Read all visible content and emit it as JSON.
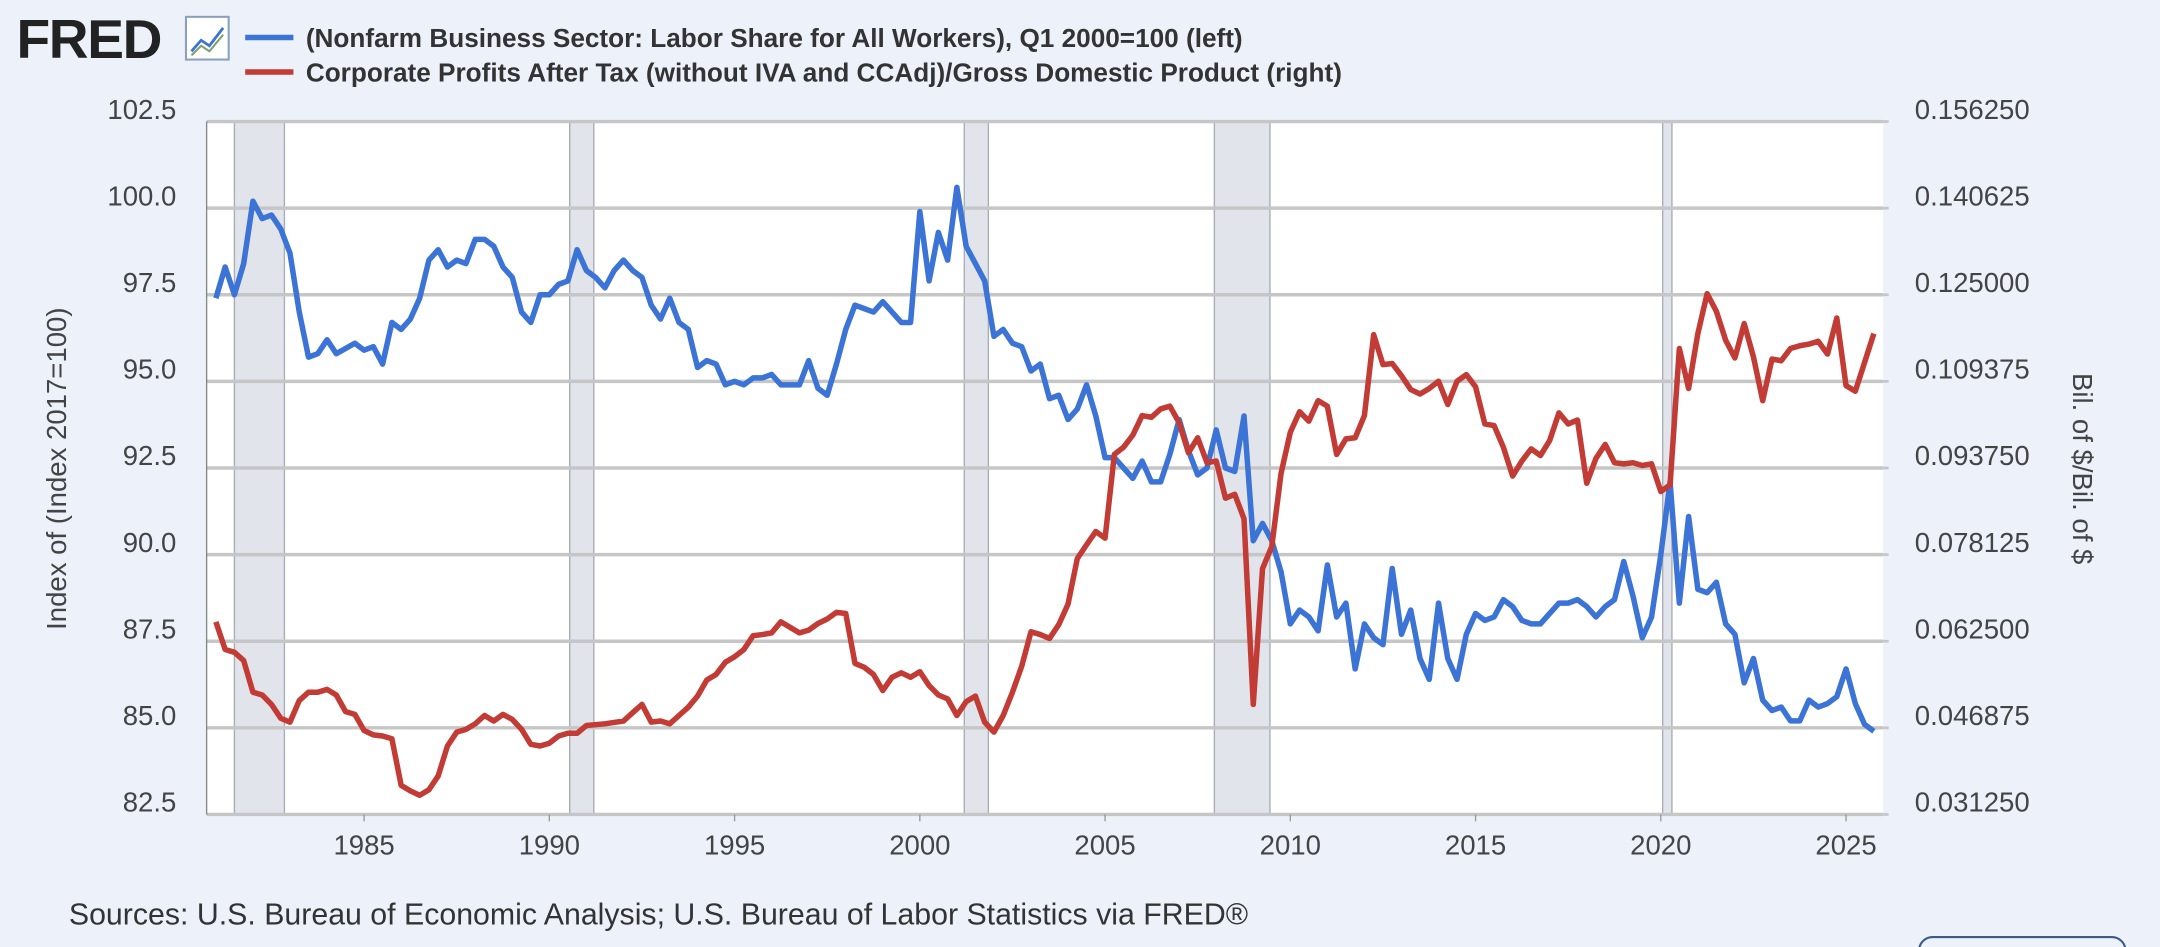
{
  "logo": "FRED",
  "chart_data": {
    "type": "line",
    "ylabel": "Index of (Index 2017=100)",
    "y2label": "Bil. of $/Bil. of $",
    "source": "Sources: U.S. Bureau of Economic Analysis; U.S. Bureau of Labor Statistics via FRED®",
    "grid": true,
    "xlim": [
      1980.75,
      2026.0
    ],
    "xticks": [
      1985,
      1990,
      1995,
      2000,
      2005,
      2010,
      2015,
      2020,
      2025
    ],
    "ylim": [
      82.5,
      102.5
    ],
    "yticks": [
      82.5,
      {
        "value": 85,
        "label": "85.0"
      },
      87.5,
      {
        "value": 90,
        "label": "90.0"
      },
      92.5,
      {
        "value": 95,
        "label": "95.0"
      },
      97.5,
      {
        "value": 100,
        "label": "100.0"
      },
      102.5
    ],
    "y2lim": [
      0.03125,
      0.15625
    ],
    "y2ticks": [
      {
        "value": 0.03125,
        "label": "0.031250"
      },
      0.046875,
      {
        "value": 0.0625,
        "label": "0.062500"
      },
      0.078125,
      {
        "value": 0.09375,
        "label": "0.093750"
      },
      0.109375,
      {
        "value": 0.125,
        "label": "0.125000"
      },
      0.140625,
      {
        "value": 0.15625,
        "label": "0.156250"
      }
    ],
    "recessions": [
      [
        1981.5,
        1982.85
      ],
      [
        1990.55,
        1991.2
      ],
      [
        2001.2,
        2001.85
      ],
      [
        2007.95,
        2009.45
      ],
      [
        2020.05,
        2020.3
      ]
    ],
    "series": [
      {
        "name": "(Nonfarm Business Sector: Labor Share for All Workers), Q1 2000=100 (left)",
        "color": "#3b73d6",
        "x": [
          1981.0,
          1981.25,
          1981.5,
          1981.75,
          1982.0,
          1982.25,
          1982.5,
          1982.75,
          1983.0,
          1983.25,
          1983.5,
          1983.75,
          1984.0,
          1984.25,
          1984.75,
          1985.0,
          1985.25,
          1985.5,
          1985.75,
          1986.0,
          1986.25,
          1986.5,
          1986.75,
          1987.0,
          1987.25,
          1987.5,
          1987.75,
          1988.0,
          1988.25,
          1988.5,
          1988.75,
          1989.0,
          1989.25,
          1989.5,
          1989.75,
          1990.0,
          1990.25,
          1990.5,
          1990.75,
          1991.0,
          1991.25,
          1991.5,
          1991.75,
          1992.0,
          1992.25,
          1992.5,
          1992.75,
          1993.0,
          1993.25,
          1993.5,
          1993.75,
          1994.0,
          1994.25,
          1994.5,
          1994.75,
          1995.0,
          1995.25,
          1995.5,
          1995.75,
          1996.0,
          1996.25,
          1996.5,
          1996.75,
          1997.0,
          1997.25,
          1997.5,
          1997.75,
          1998.0,
          1998.25,
          1998.5,
          1998.75,
          1999.0,
          1999.25,
          1999.5,
          1999.75,
          2000.0,
          2000.25,
          2000.5,
          2000.75,
          2001.0,
          2001.25,
          2001.5,
          2001.75,
          2002.0,
          2002.25,
          2002.5,
          2002.75,
          2003.0,
          2003.25,
          2003.5,
          2003.75,
          2004.0,
          2004.25,
          2004.5,
          2004.75,
          2005.0,
          2005.25,
          2005.5,
          2005.75,
          2006.0,
          2006.25,
          2006.5,
          2006.75,
          2007.0,
          2007.25,
          2007.5,
          2007.75,
          2008.0,
          2008.25,
          2008.5,
          2008.75,
          2009.0,
          2009.25,
          2009.5,
          2009.75,
          2010.0,
          2010.25,
          2010.5,
          2010.75,
          2011.0,
          2011.25,
          2011.5,
          2011.75,
          2012.0,
          2012.25,
          2012.5,
          2012.75,
          2013.0,
          2013.25,
          2013.5,
          2013.75,
          2014.0,
          2014.25,
          2014.5,
          2014.75,
          2015.0,
          2015.25,
          2015.5,
          2015.75,
          2016.0,
          2016.25,
          2016.5,
          2016.75,
          2017.0,
          2017.25,
          2017.5,
          2017.75,
          2018.0,
          2018.25,
          2018.5,
          2018.75,
          2019.0,
          2019.25,
          2019.5,
          2019.75,
          2020.0,
          2020.25,
          2020.5,
          2020.75,
          2021.0,
          2021.25,
          2021.5,
          2021.75,
          2022.0,
          2022.25,
          2022.5,
          2022.75,
          2023.0,
          2023.25,
          2023.5,
          2023.75,
          2024.0,
          2024.25,
          2024.5,
          2024.75,
          2025.0,
          2025.25,
          2025.5,
          2025.75
        ],
        "values": [
          97.4,
          98.3,
          97.5,
          98.4,
          100.2,
          99.7,
          99.8,
          99.4,
          98.7,
          97.0,
          95.7,
          95.8,
          96.2,
          95.8,
          96.1,
          95.9,
          96.0,
          95.5,
          96.7,
          96.5,
          96.8,
          97.4,
          98.5,
          98.8,
          98.3,
          98.5,
          98.4,
          99.1,
          99.1,
          98.9,
          98.3,
          98.0,
          97.0,
          96.7,
          97.5,
          97.5,
          97.8,
          97.9,
          98.8,
          98.2,
          98.0,
          97.7,
          98.2,
          98.5,
          98.2,
          98.0,
          97.2,
          96.8,
          97.4,
          96.7,
          96.5,
          95.4,
          95.6,
          95.5,
          94.9,
          95.0,
          94.9,
          95.1,
          95.1,
          95.2,
          94.9,
          94.9,
          94.9,
          95.6,
          94.8,
          94.6,
          95.5,
          96.5,
          97.2,
          97.1,
          97.0,
          97.3,
          97.0,
          96.7,
          96.7,
          99.9,
          97.9,
          99.3,
          98.5,
          100.6,
          98.9,
          98.4,
          97.9,
          96.3,
          96.5,
          96.1,
          96.0,
          95.3,
          95.5,
          94.5,
          94.6,
          93.9,
          94.2,
          94.9,
          94.0,
          92.8,
          92.8,
          92.5,
          92.2,
          92.7,
          92.1,
          92.1,
          92.9,
          93.9,
          93.0,
          92.3,
          92.5,
          93.6,
          92.5,
          92.4,
          94.0,
          90.4,
          90.9,
          90.4,
          89.5,
          88.0,
          88.4,
          88.2,
          87.8,
          89.7,
          88.2,
          88.6,
          86.7,
          88.0,
          87.6,
          87.4,
          89.6,
          87.7,
          88.4,
          87.0,
          86.4,
          88.6,
          87.0,
          86.4,
          87.7,
          88.3,
          88.1,
          88.2,
          88.7,
          88.5,
          88.1,
          88.0,
          88.0,
          88.3,
          88.6,
          88.6,
          88.7,
          88.5,
          88.2,
          88.5,
          88.7,
          89.8,
          88.8,
          87.6,
          88.2,
          90.0,
          92.1,
          88.6,
          91.1,
          89.0,
          88.9,
          89.2,
          88.0,
          87.7,
          86.3,
          87.0,
          85.8,
          85.5,
          85.6,
          85.2,
          85.2,
          85.8,
          85.6,
          85.7,
          85.9,
          86.7,
          85.7,
          85.1,
          84.9
        ]
      },
      {
        "name": "Corporate Profits After Tax (without IVA and CCAdj)/Gross Domestic Product (right)",
        "color": "#c23b35",
        "axis": "y2",
        "x": [
          1981.0,
          1981.25,
          1981.5,
          1981.75,
          1982.0,
          1982.25,
          1982.5,
          1982.75,
          1983.0,
          1983.25,
          1983.5,
          1983.75,
          1984.0,
          1984.25,
          1984.5,
          1984.75,
          1985.0,
          1985.25,
          1985.5,
          1985.75,
          1986.0,
          1986.25,
          1986.5,
          1986.75,
          1987.0,
          1987.25,
          1987.5,
          1987.75,
          1988.0,
          1988.25,
          1988.5,
          1988.75,
          1989.0,
          1989.25,
          1989.5,
          1989.75,
          1990.0,
          1990.25,
          1990.5,
          1990.75,
          1991.0,
          1991.5,
          1992.0,
          1992.25,
          1992.5,
          1992.75,
          1993.0,
          1993.25,
          1993.5,
          1993.75,
          1994.0,
          1994.25,
          1994.5,
          1994.75,
          1995.0,
          1995.25,
          1995.5,
          1995.75,
          1996.0,
          1996.25,
          1996.5,
          1996.75,
          1997.0,
          1997.25,
          1997.5,
          1997.75,
          1998.0,
          1998.25,
          1998.5,
          1998.75,
          1999.0,
          1999.25,
          1999.5,
          1999.75,
          2000.0,
          2000.25,
          2000.5,
          2000.75,
          2001.0,
          2001.25,
          2001.5,
          2001.75,
          2002.0,
          2002.25,
          2002.5,
          2002.75,
          2003.0,
          2003.25,
          2003.5,
          2003.75,
          2004.0,
          2004.25,
          2004.5,
          2004.75,
          2005.0,
          2005.25,
          2005.5,
          2005.75,
          2006.0,
          2006.25,
          2006.5,
          2006.75,
          2007.0,
          2007.25,
          2007.5,
          2007.75,
          2008.0,
          2008.25,
          2008.5,
          2008.75,
          2009.0,
          2009.25,
          2009.5,
          2009.75,
          2010.0,
          2010.25,
          2010.5,
          2010.75,
          2011.0,
          2011.25,
          2011.5,
          2011.75,
          2012.0,
          2012.25,
          2012.5,
          2012.75,
          2013.0,
          2013.25,
          2013.5,
          2013.75,
          2014.0,
          2014.25,
          2014.5,
          2014.75,
          2015.0,
          2015.25,
          2015.5,
          2015.75,
          2016.0,
          2016.25,
          2016.5,
          2016.75,
          2017.0,
          2017.25,
          2017.5,
          2017.75,
          2018.0,
          2018.25,
          2018.5,
          2018.75,
          2019.0,
          2019.25,
          2019.5,
          2019.75,
          2020.0,
          2020.25,
          2020.5,
          2020.75,
          2021.0,
          2021.25,
          2021.5,
          2021.75,
          2022.0,
          2022.25,
          2022.5,
          2022.75,
          2023.0,
          2023.25,
          2023.5,
          2023.75,
          2024.0,
          2024.25,
          2024.5,
          2024.75,
          2025.0,
          2025.25,
          2025.5,
          2025.75
        ],
        "values": [
          0.066,
          0.061,
          0.0605,
          0.059,
          0.0533,
          0.0528,
          0.0511,
          0.0486,
          0.0479,
          0.0518,
          0.0533,
          0.0533,
          0.0538,
          0.0528,
          0.0498,
          0.0493,
          0.0464,
          0.0456,
          0.0454,
          0.0449,
          0.0365,
          0.0355,
          0.0347,
          0.0357,
          0.0382,
          0.0436,
          0.0461,
          0.0466,
          0.0476,
          0.0491,
          0.0481,
          0.0493,
          0.0484,
          0.0466,
          0.0439,
          0.0436,
          0.0441,
          0.0454,
          0.0459,
          0.0459,
          0.0473,
          0.0476,
          0.0481,
          0.0496,
          0.0511,
          0.0479,
          0.0481,
          0.0476,
          0.0491,
          0.0506,
          0.0526,
          0.0555,
          0.0565,
          0.0587,
          0.0597,
          0.061,
          0.0635,
          0.0637,
          0.064,
          0.066,
          0.065,
          0.064,
          0.0645,
          0.0657,
          0.0665,
          0.0677,
          0.0675,
          0.0585,
          0.0578,
          0.0565,
          0.0536,
          0.056,
          0.0568,
          0.056,
          0.057,
          0.0545,
          0.0528,
          0.0521,
          0.0491,
          0.0516,
          0.0526,
          0.0479,
          0.0461,
          0.0491,
          0.0533,
          0.058,
          0.0642,
          0.0637,
          0.063,
          0.0655,
          0.0692,
          0.0774,
          0.0799,
          0.0823,
          0.0811,
          0.0962,
          0.0975,
          0.0997,
          0.1032,
          0.1029,
          0.1044,
          0.1049,
          0.1019,
          0.0965,
          0.0992,
          0.0947,
          0.095,
          0.0883,
          0.089,
          0.0846,
          0.0511,
          0.0756,
          0.0796,
          0.0928,
          0.1002,
          0.1039,
          0.1022,
          0.1059,
          0.1049,
          0.0962,
          0.099,
          0.0992,
          0.1032,
          0.1178,
          0.1124,
          0.1126,
          0.1104,
          0.1079,
          0.1071,
          0.1081,
          0.1094,
          0.1052,
          0.1094,
          0.1106,
          0.1084,
          0.1017,
          0.1014,
          0.0975,
          0.0923,
          0.095,
          0.0972,
          0.096,
          0.0987,
          0.1037,
          0.1017,
          0.1024,
          0.091,
          0.0955,
          0.098,
          0.0947,
          0.0945,
          0.0947,
          0.0942,
          0.0945,
          0.0895,
          0.0907,
          0.1153,
          0.1081,
          0.118,
          0.1252,
          0.122,
          0.1168,
          0.1136,
          0.1198,
          0.1138,
          0.1059,
          0.1134,
          0.1131,
          0.1153,
          0.1158,
          0.1161,
          0.1166,
          0.1143,
          0.1208,
          0.1086,
          0.1076,
          0.1128,
          0.118
        ]
      }
    ]
  }
}
